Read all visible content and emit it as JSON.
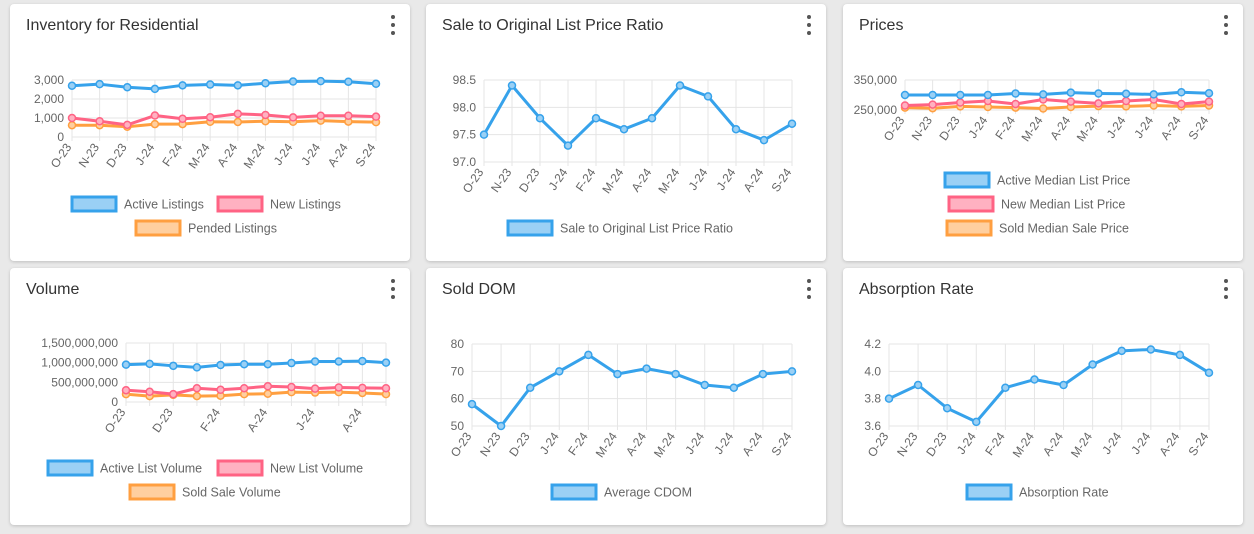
{
  "colors": {
    "blue": "#36a2eb",
    "blue_fill": "#9ad0f5",
    "pink": "#ff6384",
    "pink_fill": "#ffb1c1",
    "orange": "#ff9f40",
    "orange_fill": "#ffcf9f",
    "grid": "#e5e5e5"
  },
  "menu_icon": "more-vert-icon",
  "cards": [
    {
      "title": "Inventory for Residential"
    },
    {
      "title": "Sale to Original List Price Ratio"
    },
    {
      "title": "Prices"
    },
    {
      "title": "Volume"
    },
    {
      "title": "Sold DOM"
    },
    {
      "title": "Absorption Rate"
    }
  ],
  "chart_data": [
    {
      "type": "line",
      "title": "Inventory for Residential",
      "categories": [
        "O-23",
        "N-23",
        "D-23",
        "J-24",
        "F-24",
        "M-24",
        "A-24",
        "M-24",
        "J-24",
        "J-24",
        "A-24",
        "S-24"
      ],
      "ylim": [
        0,
        3000
      ],
      "yticks": [
        "0",
        "1,000",
        "2,000",
        "3,000"
      ],
      "grid": true,
      "legend_position": "bottom",
      "series": [
        {
          "name": "Active Listings",
          "color": "blue",
          "values": [
            2700,
            2780,
            2620,
            2530,
            2720,
            2760,
            2720,
            2830,
            2920,
            2940,
            2910,
            2800
          ]
        },
        {
          "name": "New Listings",
          "color": "pink",
          "values": [
            1000,
            830,
            640,
            1130,
            960,
            1040,
            1220,
            1160,
            1030,
            1120,
            1120,
            1070
          ]
        },
        {
          "name": "Pended Listings",
          "color": "orange",
          "values": [
            620,
            620,
            540,
            680,
            680,
            800,
            790,
            830,
            800,
            860,
            810,
            780
          ]
        }
      ]
    },
    {
      "type": "line",
      "title": "Sale to Original List Price Ratio",
      "categories": [
        "O-23",
        "N-23",
        "D-23",
        "J-24",
        "F-24",
        "M-24",
        "A-24",
        "M-24",
        "J-24",
        "J-24",
        "A-24",
        "S-24"
      ],
      "ylim": [
        97.0,
        98.5
      ],
      "yticks": [
        "97.0",
        "97.5",
        "98.0",
        "98.5"
      ],
      "grid": true,
      "legend_position": "bottom",
      "series": [
        {
          "name": "Sale to Original List Price Ratio",
          "color": "blue",
          "values": [
            97.5,
            98.4,
            97.8,
            97.3,
            97.8,
            97.6,
            97.8,
            98.4,
            98.2,
            97.6,
            97.4,
            97.7
          ]
        }
      ]
    },
    {
      "type": "line",
      "title": "Prices",
      "categories": [
        "O-23",
        "N-23",
        "D-23",
        "J-24",
        "F-24",
        "M-24",
        "A-24",
        "M-24",
        "J-24",
        "J-24",
        "A-24",
        "S-24"
      ],
      "ylim": [
        250000,
        350000
      ],
      "yticks": [
        "250,000",
        "350,000"
      ],
      "grid": true,
      "legend_position": "bottom",
      "series": [
        {
          "name": "Active Median List Price",
          "color": "blue",
          "values": [
            300000,
            300000,
            300000,
            300000,
            305000,
            302000,
            308000,
            305000,
            304000,
            302000,
            309000,
            306000
          ]
        },
        {
          "name": "New Median List Price",
          "color": "pink",
          "values": [
            265000,
            268000,
            275000,
            280000,
            270000,
            285000,
            278000,
            272000,
            280000,
            285000,
            270000,
            278000
          ]
        },
        {
          "name": "Sold Median Sale Price",
          "color": "orange",
          "values": [
            258000,
            256000,
            262000,
            260000,
            258000,
            255000,
            260000,
            263000,
            262000,
            265000,
            262000,
            265000
          ]
        }
      ]
    },
    {
      "type": "line",
      "title": "Volume",
      "categories": [
        "O-23",
        "N-23",
        "D-23",
        "J-24",
        "F-24",
        "M-24",
        "A-24",
        "M-24",
        "J-24",
        "J-24",
        "A-24",
        "S-24"
      ],
      "x_tick_labels": [
        "O-23",
        "D-23",
        "F-24",
        "A-24",
        "J-24",
        "A-24"
      ],
      "ylim": [
        0,
        1500000000
      ],
      "yticks": [
        "0",
        "500,000,000",
        "1,000,000,000",
        "1,500,000,000"
      ],
      "grid": true,
      "legend_position": "bottom",
      "series": [
        {
          "name": "Active List Volume",
          "color": "blue",
          "values": [
            950000000,
            970000000,
            920000000,
            880000000,
            940000000,
            960000000,
            960000000,
            990000000,
            1030000000,
            1030000000,
            1040000000,
            1000000000
          ]
        },
        {
          "name": "New List Volume",
          "color": "pink",
          "values": [
            300000000,
            260000000,
            200000000,
            350000000,
            310000000,
            350000000,
            400000000,
            380000000,
            340000000,
            370000000,
            360000000,
            350000000
          ]
        },
        {
          "name": "Sold Sale Volume",
          "color": "orange",
          "values": [
            200000000,
            150000000,
            180000000,
            150000000,
            160000000,
            200000000,
            210000000,
            250000000,
            240000000,
            250000000,
            230000000,
            200000000
          ]
        }
      ]
    },
    {
      "type": "line",
      "title": "Sold DOM",
      "categories": [
        "O-23",
        "N-23",
        "D-23",
        "J-24",
        "F-24",
        "M-24",
        "A-24",
        "M-24",
        "J-24",
        "J-24",
        "A-24",
        "S-24"
      ],
      "ylim": [
        50,
        80
      ],
      "yticks": [
        "50",
        "60",
        "70",
        "80"
      ],
      "grid": true,
      "legend_position": "bottom",
      "series": [
        {
          "name": "Average CDOM",
          "color": "blue",
          "values": [
            58,
            50,
            64,
            70,
            76,
            69,
            71,
            69,
            65,
            64,
            69,
            70
          ]
        }
      ]
    },
    {
      "type": "line",
      "title": "Absorption Rate",
      "categories": [
        "O-23",
        "N-23",
        "D-23",
        "J-24",
        "F-24",
        "M-24",
        "A-24",
        "M-24",
        "J-24",
        "J-24",
        "A-24",
        "S-24"
      ],
      "ylim": [
        3.6,
        4.2
      ],
      "yticks": [
        "3.6",
        "3.8",
        "4.0",
        "4.2"
      ],
      "grid": true,
      "legend_position": "bottom",
      "series": [
        {
          "name": "Absorption Rate",
          "color": "blue",
          "values": [
            3.8,
            3.9,
            3.73,
            3.63,
            3.88,
            3.94,
            3.9,
            4.05,
            4.15,
            4.16,
            4.12,
            3.99
          ]
        }
      ]
    }
  ]
}
